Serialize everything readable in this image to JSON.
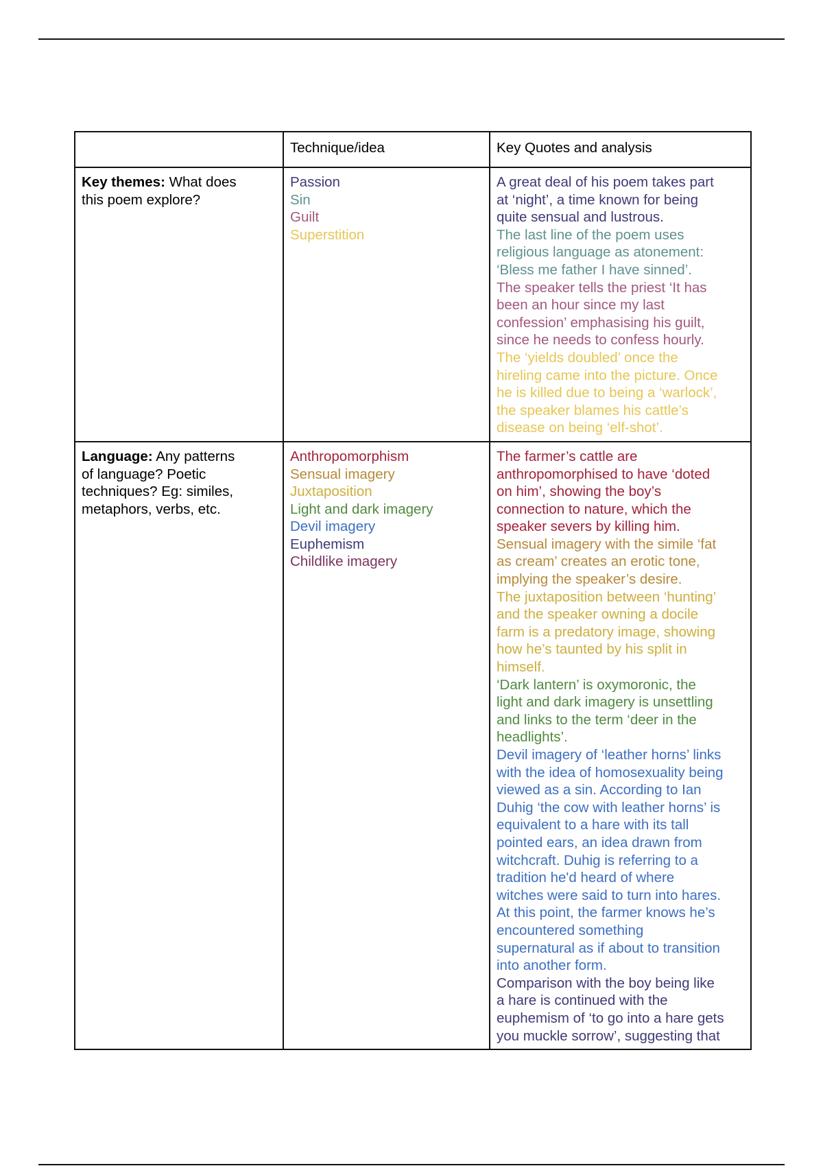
{
  "header": {
    "col1": "",
    "col2": "Technique/idea",
    "col3": "Key Quotes and analysis"
  },
  "rows": [
    {
      "label_bold": "Key themes:",
      "label_lines": [
        "What does",
        "this poem explore?"
      ],
      "techniques": [
        {
          "text": "Passion",
          "color": "#3e3a78"
        },
        {
          "text": "Sin",
          "color": "#5e9190"
        },
        {
          "text": "Guilt",
          "color": "#a3587e"
        },
        {
          "text": "Superstition",
          "color": "#e6c655"
        }
      ],
      "analysis": [
        {
          "color": "#3e3a78",
          "lines": [
            "A great deal of his poem takes part",
            "at ‘night’, a time known for being",
            "quite sensual and lustrous."
          ]
        },
        {
          "color": "#5e9190",
          "lines": [
            "The last line of the poem uses",
            "religious language as atonement:",
            "‘Bless me father I have sinned’."
          ]
        },
        {
          "color": "#a3587e",
          "lines": [
            "The speaker tells the priest ‘It has",
            "been an hour since my last",
            "confession’ emphasising his guilt,",
            "since he needs to confess hourly."
          ]
        },
        {
          "color": "#e6c655",
          "lines": [
            "The ‘yields doubled’ once the",
            "hireling came into the picture. Once",
            "he is killed due to being a ‘warlock’,",
            "the speaker blames his cattle’s",
            "disease on being ‘elf-shot’."
          ]
        }
      ]
    },
    {
      "label_bold": "Language:",
      "label_lines": [
        "Any patterns",
        "of language? Poetic",
        "techniques? Eg: similes,",
        "metaphors, verbs, etc."
      ],
      "techniques": [
        {
          "text": "Anthropomorphism",
          "color": "#a3223a"
        },
        {
          "text": "Sensual imagery",
          "color": "#b8893a"
        },
        {
          "text": "Juxtaposition",
          "color": "#cdae3e"
        },
        {
          "text": "Light and dark imagery",
          "color": "#4f8a3f"
        },
        {
          "text": "Devil imagery",
          "color": "#3d6fc2"
        },
        {
          "text": "Euphemism",
          "color": "#3e3a78"
        },
        {
          "text": "Childlike imagery",
          "color": "#7a3360"
        }
      ],
      "analysis": [
        {
          "color": "#a3223a",
          "lines": [
            "The farmer’s cattle are",
            "anthropomorphised to have ‘doted",
            "on him’, showing the boy’s",
            "connection to nature, which the",
            "speaker severs by killing him."
          ]
        },
        {
          "color": "#b8893a",
          "lines": [
            "Sensual imagery with the simile ‘fat",
            "as cream’ creates an erotic tone,",
            "implying the speaker’s desire."
          ]
        },
        {
          "color": "#cdae3e",
          "lines": [
            "The juxtaposition between ‘hunting’",
            "and the speaker owning a docile",
            "farm is a predatory image, showing",
            "how he’s taunted by his split in",
            "himself."
          ]
        },
        {
          "color": "#4f8a3f",
          "lines": [
            "‘Dark lantern’ is oxymoronic, the",
            "light and dark imagery is unsettling",
            "and links to the term ‘deer in the",
            "headlights’."
          ]
        },
        {
          "color": "#3d6fc2",
          "lines": [
            "Devil imagery of ‘leather horns’ links",
            "with the idea of homosexuality being",
            "viewed as a sin. According to Ian",
            "Duhig ‘the cow with leather horns’ is",
            "equivalent to a hare with its tall",
            "pointed ears, an idea drawn from",
            "witchcraft. Duhig is referring to a",
            "tradition he'd heard of where",
            "witches were said to turn into hares.",
            "At this point, the farmer knows he’s",
            "encountered something",
            "supernatural as if about to transition",
            "into another form."
          ]
        },
        {
          "color": "#3e3a78",
          "lines": [
            "Comparison with the boy being like",
            "a hare is continued with the",
            "euphemism of ‘to go into a hare gets",
            "you muckle sorrow’, suggesting that"
          ]
        }
      ]
    }
  ]
}
